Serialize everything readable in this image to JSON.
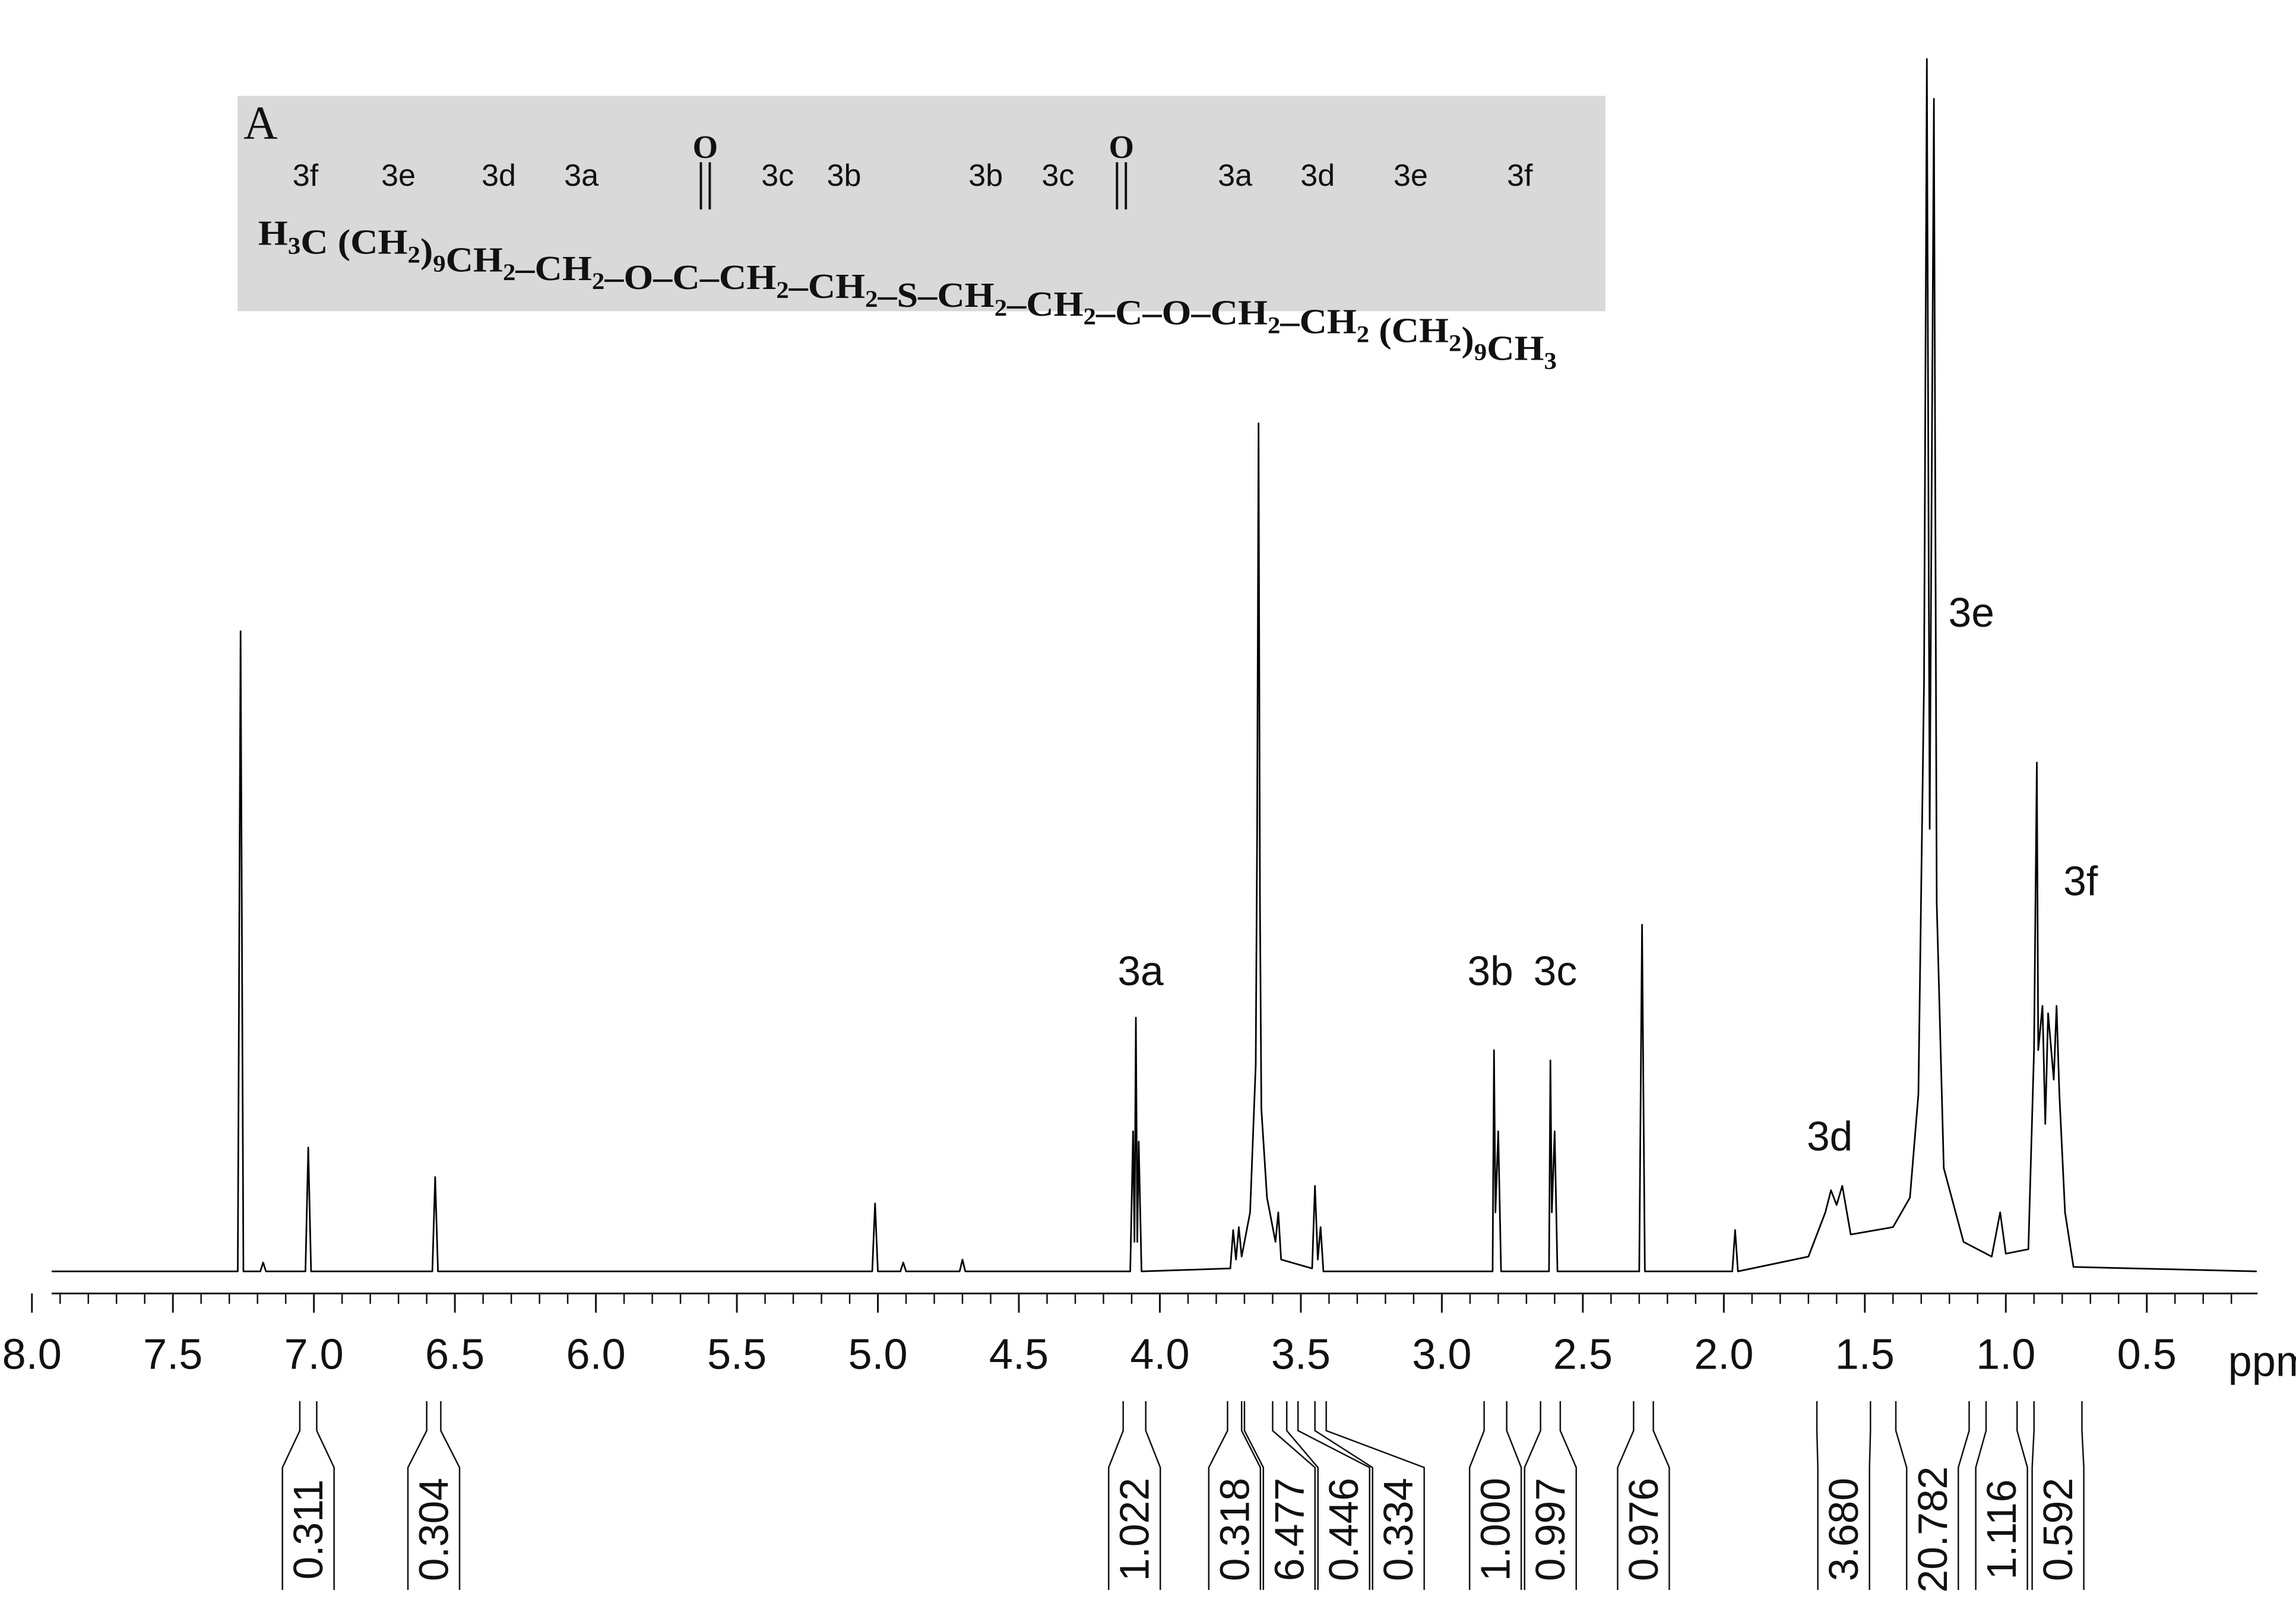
{
  "chart_data": {
    "type": "line",
    "x_label": "ppm",
    "xlim": [
      7.93,
      0.107
    ],
    "xticks": [
      {
        "value": 8,
        "label": "8.0"
      },
      7.5,
      {
        "value": 7,
        "label": "7.0"
      },
      6.5,
      {
        "value": 6,
        "label": "6.0"
      },
      5.5,
      {
        "value": 5,
        "label": "5.0"
      },
      4.5,
      {
        "value": 4,
        "label": "4.0"
      },
      3.5,
      {
        "value": 3,
        "label": "3.0"
      },
      2.5,
      {
        "value": 2,
        "label": "2.0"
      },
      1.5,
      {
        "value": 1,
        "label": "1.0"
      },
      0.5
    ],
    "xminor_step": 0.1,
    "ylim": [
      0,
      825
    ],
    "color": "#000000",
    "x": [
      7.93,
      7.27,
      7.26,
      7.25,
      7.19,
      7.18,
      7.17,
      7.03,
      7.02,
      7.01,
      6.58,
      6.57,
      6.56,
      5.02,
      5.01,
      5.0,
      4.92,
      4.91,
      4.9,
      4.71,
      4.7,
      4.69,
      4.105,
      4.095,
      4.09,
      4.085,
      4.08,
      4.075,
      4.065,
      3.75,
      3.74,
      3.73,
      3.72,
      3.71,
      3.68,
      3.66,
      3.655,
      3.65,
      3.645,
      3.64,
      3.62,
      3.59,
      3.58,
      3.57,
      3.46,
      3.45,
      3.44,
      3.43,
      3.42,
      2.82,
      2.815,
      2.81,
      2.8,
      2.79,
      2.62,
      2.615,
      2.61,
      2.6,
      2.59,
      2.3,
      2.29,
      2.28,
      1.97,
      1.96,
      1.95,
      1.7,
      1.64,
      1.62,
      1.6,
      1.58,
      1.55,
      1.4,
      1.34,
      1.31,
      1.29,
      1.28,
      1.27,
      1.255,
      1.245,
      1.22,
      1.15,
      1.05,
      1.02,
      1.0,
      0.92,
      0.9,
      0.89,
      0.885,
      0.87,
      0.86,
      0.85,
      0.83,
      0.82,
      0.81,
      0.79,
      0.76,
      0.11
    ],
    "values": [
      0,
      0,
      434,
      0,
      0,
      6,
      0,
      0,
      84,
      0,
      0,
      64,
      0,
      0,
      46,
      0,
      0,
      6,
      0,
      0,
      8,
      0,
      0,
      95,
      20,
      172,
      20,
      88,
      0,
      2,
      28,
      8,
      30,
      10,
      40,
      140,
      300,
      575,
      250,
      110,
      50,
      20,
      40,
      8,
      2,
      58,
      8,
      30,
      0,
      0,
      150,
      40,
      95,
      0,
      0,
      143,
      40,
      95,
      0,
      0,
      235,
      0,
      0,
      28,
      0,
      10,
      40,
      55,
      45,
      58,
      25,
      30,
      50,
      120,
      400,
      822,
      300,
      795,
      250,
      70,
      20,
      10,
      40,
      12,
      15,
      150,
      345,
      150,
      180,
      100,
      175,
      130,
      180,
      120,
      40,
      3,
      0
    ],
    "peak_labels": [
      "3a",
      "3b",
      "3c",
      "3d",
      "3e",
      "3f"
    ],
    "integrals": [
      {
        "value": 0.311,
        "label": "0.311",
        "from": 7.05,
        "to": 6.99
      },
      {
        "value": 0.304,
        "label": "0.304",
        "from": 6.6,
        "to": 6.55
      },
      {
        "value": 1.022,
        "label": "1.022",
        "from": 4.13,
        "to": 4.05
      },
      {
        "value": 0.318,
        "label": "0.318",
        "from": 3.76,
        "to": 3.71
      },
      {
        "value": 6.477,
        "label": "6.477",
        "from": 3.7,
        "to": 3.6
      },
      {
        "value": 0.446,
        "label": "0.446",
        "from": 3.55,
        "to": 3.51
      },
      {
        "value": 0.334,
        "label": "0.334",
        "from": 3.45,
        "to": 3.41
      },
      {
        "value": 1,
        "label": "1.000",
        "from": 2.85,
        "to": 2.77
      },
      {
        "value": 0.997,
        "label": "0.997",
        "from": 2.65,
        "to": 2.58
      },
      {
        "value": 0.976,
        "label": "0.976",
        "from": 2.32,
        "to": 2.25
      },
      {
        "value": 3.68,
        "label": "3.680",
        "from": 1.67,
        "to": 1.48
      },
      {
        "value": 20.782,
        "label": "20.782",
        "from": 1.39,
        "to": 1.13
      },
      {
        "value": 1.116,
        "label": "1.116",
        "from": 1.07,
        "to": 0.96
      },
      {
        "value": 0.592,
        "label": "0.592",
        "from": 0.9,
        "to": 0.73
      }
    ],
    "structure": {
      "panel": "A",
      "group_labels": [
        "3f",
        "3e",
        "3d",
        "3a",
        "3c",
        "3b",
        "3b",
        "3c",
        "3a",
        "3d",
        "3e",
        "3f"
      ],
      "carbonyl_oxygen": [
        "O",
        "O"
      ],
      "formula": [
        {
          "text": "H",
          "sub": "3"
        },
        {
          "text": "C (CH",
          "sub": "2"
        },
        {
          "text": ")",
          "sub": "9"
        },
        {
          "text": "CH",
          "sub": "2"
        },
        {
          "text": "–CH",
          "sub": "2"
        },
        {
          "text": "–O–C–CH",
          "sub": "2"
        },
        {
          "text": "–CH",
          "sub": "2"
        },
        {
          "text": "–S–CH",
          "sub": "2"
        },
        {
          "text": "–CH",
          "sub": "2"
        },
        {
          "text": "–C–O–CH",
          "sub": "2"
        },
        {
          "text": "–CH",
          "sub": "2"
        },
        {
          "text": " (CH",
          "sub": "2"
        },
        {
          "text": ")",
          "sub": "9"
        },
        {
          "text": "CH",
          "sub": "3"
        }
      ]
    }
  }
}
